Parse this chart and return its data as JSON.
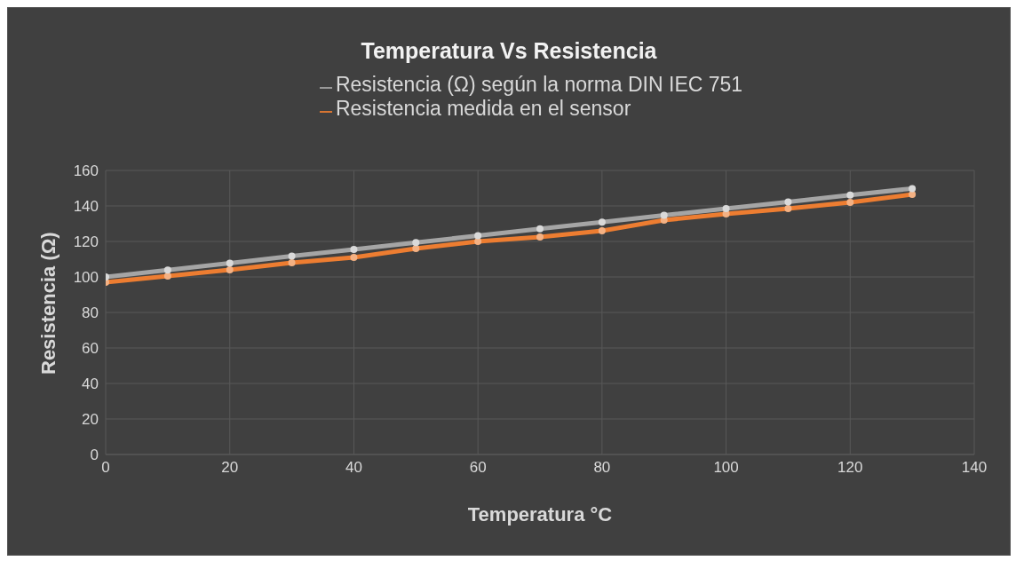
{
  "chart_data": {
    "type": "line",
    "title": "Temperatura Vs Resistencia",
    "xlabel": "Temperatura °C",
    "ylabel": "Resistencia  (Ω)",
    "x": [
      0,
      10,
      20,
      30,
      40,
      50,
      60,
      70,
      80,
      90,
      100,
      110,
      120,
      130
    ],
    "series": [
      {
        "name": "Resistencia medida en el sensor",
        "color": "#ed7d31",
        "values": [
          97,
          100.5,
          104,
          108,
          111,
          116,
          120,
          122.5,
          126,
          132,
          135.5,
          138.5,
          142,
          146.5
        ]
      },
      {
        "name": "Resistencia  (Ω) según la norma DIN IEC 751",
        "color": "#a5a5a5",
        "values": [
          100,
          103.9,
          107.8,
          111.7,
          115.5,
          119.4,
          123.2,
          127.1,
          130.9,
          134.7,
          138.5,
          142.3,
          146.1,
          149.8
        ]
      }
    ],
    "xlim": [
      0,
      140
    ],
    "xticks": [
      0,
      20,
      40,
      60,
      80,
      100,
      120,
      140
    ],
    "ylim": [
      0,
      160
    ],
    "yticks": [
      0,
      20,
      40,
      60,
      80,
      100,
      120,
      140,
      160
    ],
    "grid": true,
    "legend": "top",
    "marker": "circle",
    "line_style": "solid"
  }
}
